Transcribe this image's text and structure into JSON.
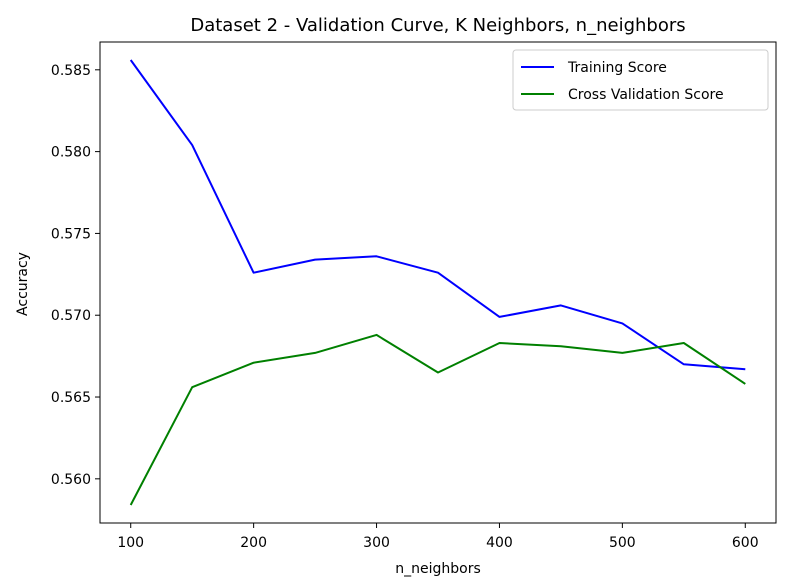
{
  "chart_data": {
    "type": "line",
    "title": "Dataset 2 - Validation Curve, K Neighbors, n_neighbors",
    "xlabel": "n_neighbors",
    "ylabel": "Accuracy",
    "x": [
      100,
      150,
      200,
      250,
      300,
      350,
      400,
      450,
      500,
      550,
      600
    ],
    "xlim": [
      75,
      625
    ],
    "ylim": [
      0.5573,
      0.5867
    ],
    "xticks": [
      100,
      200,
      300,
      400,
      500,
      600
    ],
    "xtick_labels": [
      "100",
      "200",
      "300",
      "400",
      "500",
      "600"
    ],
    "yticks": [
      0.56,
      0.565,
      0.57,
      0.575,
      0.58,
      0.585
    ],
    "ytick_labels": [
      "0.560",
      "0.565",
      "0.570",
      "0.575",
      "0.580",
      "0.585"
    ],
    "grid": false,
    "legend_position": "upper right",
    "series": [
      {
        "name": "Training Score",
        "color": "#0000ff",
        "values": [
          0.5856,
          0.5804,
          0.5726,
          0.5734,
          0.5736,
          0.5726,
          0.5699,
          0.5706,
          0.5695,
          0.567,
          0.5667
        ]
      },
      {
        "name": "Cross Validation Score",
        "color": "#008000",
        "values": [
          0.5584,
          0.5656,
          0.5671,
          0.5677,
          0.5688,
          0.5665,
          0.5683,
          0.5681,
          0.5677,
          0.5683,
          0.5658
        ]
      }
    ]
  }
}
